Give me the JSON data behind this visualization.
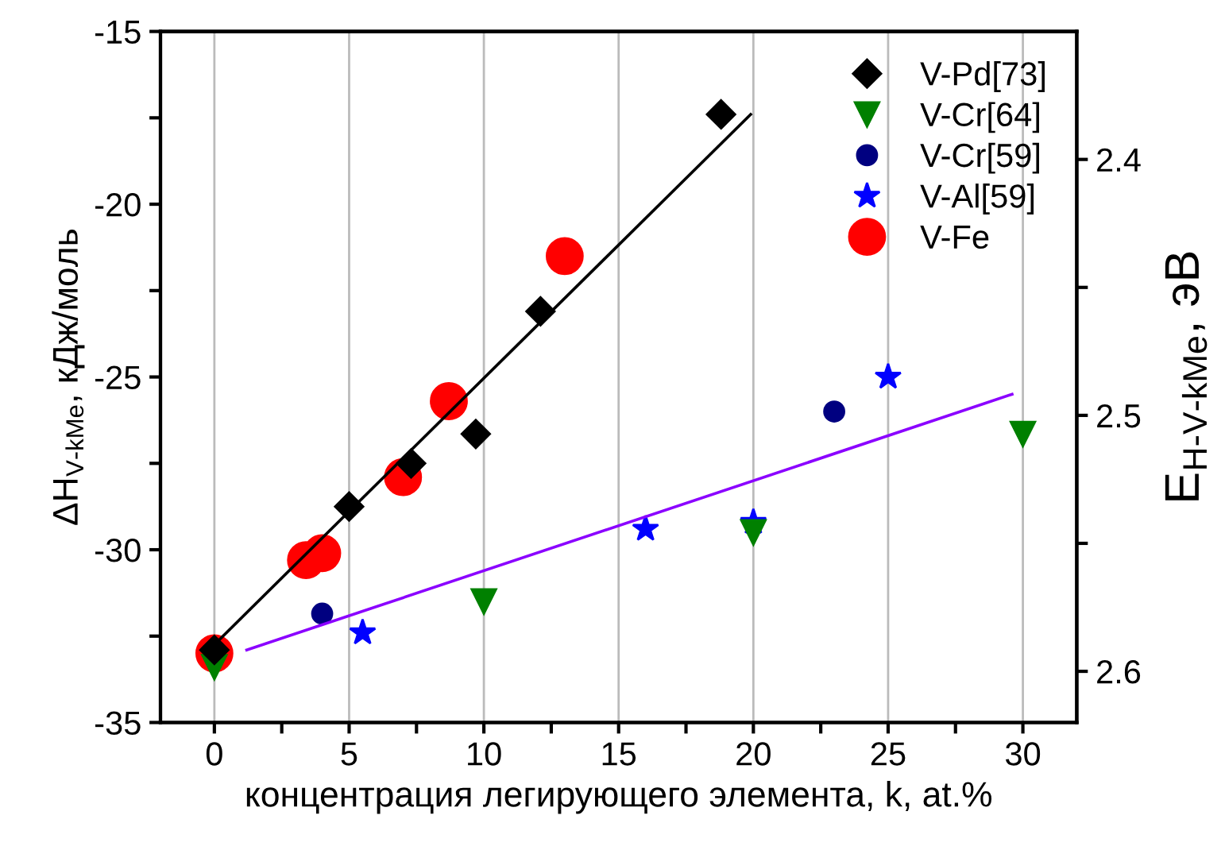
{
  "chart_data": {
    "type": "scatter",
    "xlabel": "концентрация легирующего элемента, k, at.%",
    "ylabel": "ΔH$_{V-kMe}$, кДж/моль",
    "y2label": "E$_{H-V-kMe}$, эВ",
    "xlim": [
      -2,
      32
    ],
    "xticks": [
      0,
      {
        "value": 2.5,
        "label": null
      },
      5,
      {
        "value": 7.5,
        "label": null
      },
      10,
      {
        "value": 12.5,
        "label": null
      },
      15,
      {
        "value": 17.5,
        "label": null
      },
      20,
      {
        "value": 22.5,
        "label": null
      },
      25,
      {
        "value": 27.5,
        "label": null
      },
      30
    ],
    "ylim": [
      -35,
      -15
    ],
    "yticks": [
      -35,
      {
        "value": -32.5,
        "label": null
      },
      -30,
      {
        "value": -27.5,
        "label": null
      },
      -25,
      {
        "value": -22.5,
        "label": null
      },
      -20,
      {
        "value": -17.5,
        "label": null
      },
      -15
    ],
    "y2lim": [
      2.62,
      2.35
    ],
    "y2ticks": [
      2.4,
      {
        "value": 2.45,
        "label": null
      },
      2.5,
      {
        "value": 2.55,
        "label": null
      },
      2.6
    ],
    "grid": "x",
    "legend": "top right",
    "series": [
      {
        "name": "V-Pd[73]",
        "color": "#000000",
        "marker": "diamond",
        "x": [
          0,
          5.0,
          7.3,
          9.7,
          12.1,
          18.8
        ],
        "values": [
          -32.9,
          -28.75,
          -27.5,
          -26.65,
          -23.1,
          -17.4
        ]
      },
      {
        "name": "V-Cr[64]",
        "color": "#008000",
        "marker": "triangle",
        "x": [
          0,
          10,
          20,
          30
        ],
        "values": [
          -33.4,
          -31.5,
          -29.5,
          -26.65
        ]
      },
      {
        "name": "V-Cr[59]",
        "color": "#000080",
        "marker": "circle",
        "x": [
          4.0,
          23.0
        ],
        "values": [
          -31.85,
          -26.0
        ]
      },
      {
        "name": "V-Al[59]",
        "color": "#0000ff",
        "marker": "star",
        "x": [
          5.5,
          16.0,
          20,
          25
        ],
        "values": [
          -32.4,
          -29.4,
          -29.2,
          -25.0
        ]
      },
      {
        "name": "V-Fe",
        "color": "#ff0000",
        "marker": "circle",
        "x": [
          0,
          3.4,
          4.0,
          7.0,
          8.7,
          13.0
        ],
        "values": [
          -33.0,
          -30.3,
          -30.1,
          -27.9,
          -25.7,
          -21.5
        ]
      },
      {
        "type": "line",
        "color": "#000000",
        "marker": "none",
        "x": [
          -0.2,
          19.9
        ],
        "values": [
          -32.9,
          -17.4
        ]
      },
      {
        "type": "line",
        "color": "#8b00ff",
        "marker": "none",
        "x": [
          1.2,
          29.6
        ],
        "values": [
          -32.9,
          -25.5
        ]
      }
    ]
  }
}
